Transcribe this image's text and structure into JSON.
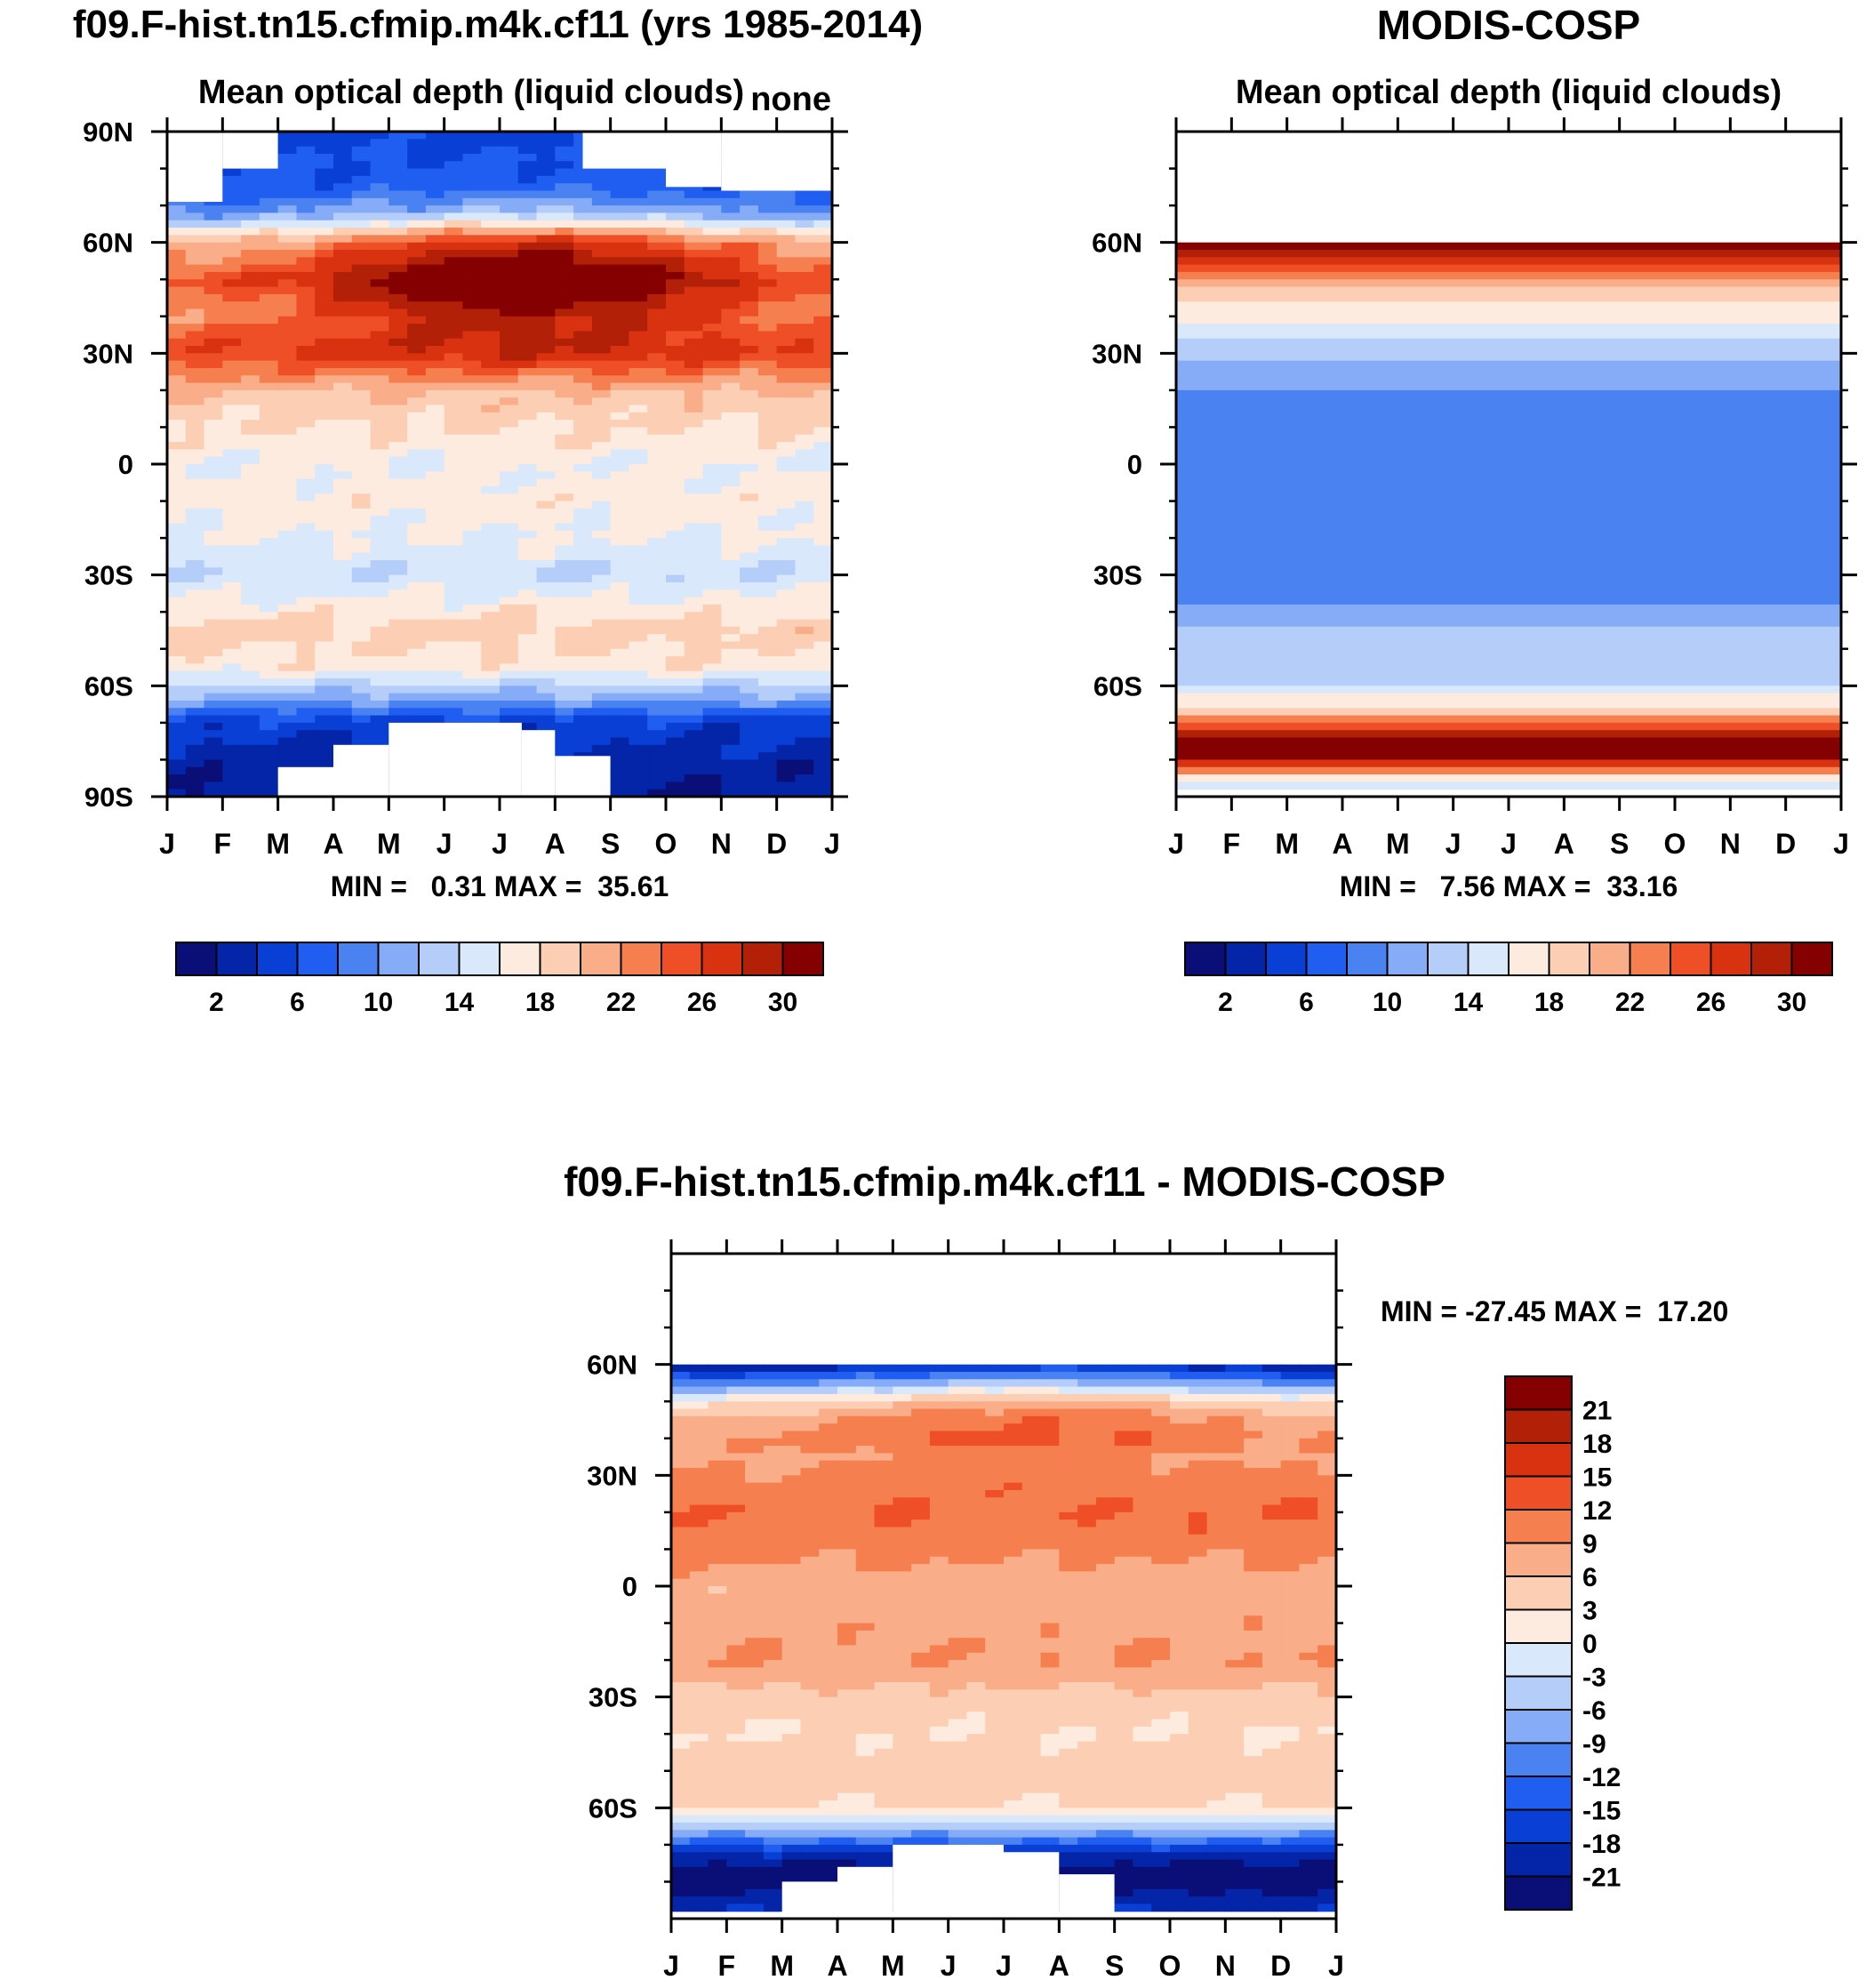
{
  "colors": {
    "abs": [
      "#0a0f78",
      "#0525a8",
      "#0a3fd6",
      "#1f5ef0",
      "#4a82f2",
      "#86acf7",
      "#b5cdf9",
      "#d9e8fb",
      "#fcebde",
      "#fccfb5",
      "#f9ad88",
      "#f67f50",
      "#ef4f26",
      "#d93210",
      "#b32008",
      "#850000"
    ],
    "diff": [
      "#0a0f78",
      "#0525a8",
      "#0a3fd6",
      "#1f5ef0",
      "#4a82f2",
      "#86acf7",
      "#b5cdf9",
      "#d9e8fb",
      "#fcebde",
      "#fccfb5",
      "#f9ad88",
      "#f67f50",
      "#ef4f26",
      "#d93210",
      "#b32008",
      "#850000"
    ]
  },
  "months": [
    "J",
    "F",
    "M",
    "A",
    "M",
    "J",
    "J",
    "A",
    "S",
    "O",
    "N",
    "D",
    "J"
  ],
  "chart_data": [
    {
      "type": "heatmap",
      "title": "f09.F-hist.tn15.cfmip.m4k.cf11 (yrs 1985-2014)",
      "subtitle": "Mean optical depth (liquid clouds)",
      "corner_label": "none",
      "ytick_labels": [
        "90N",
        "60N",
        "30N",
        "0",
        "30S",
        "60S",
        "90S"
      ],
      "ytick_values": [
        90,
        60,
        30,
        0,
        -30,
        -60,
        -90
      ],
      "ylim": [
        -90,
        90
      ],
      "minmax": "MIN =   0.31 MAX =  35.61",
      "min": 0.31,
      "max": 35.61,
      "colorbar_labels": [
        "2",
        "6",
        "10",
        "14",
        "18",
        "22",
        "26",
        "30"
      ],
      "levels": [
        2,
        4,
        6,
        8,
        10,
        12,
        14,
        16,
        18,
        20,
        22,
        24,
        26,
        28,
        30
      ],
      "lat_profile": [
        [
          90,
          5
        ],
        [
          75,
          7
        ],
        [
          68,
          11
        ],
        [
          60,
          24
        ],
        [
          50,
          30
        ],
        [
          40,
          26
        ],
        [
          30,
          27
        ],
        [
          20,
          20
        ],
        [
          10,
          18
        ],
        [
          0,
          16
        ],
        [
          -10,
          17
        ],
        [
          -20,
          16
        ],
        [
          -30,
          14
        ],
        [
          -45,
          19
        ],
        [
          -55,
          17
        ],
        [
          -62,
          12
        ],
        [
          -70,
          5
        ],
        [
          -80,
          3
        ],
        [
          -90,
          2
        ]
      ],
      "masked": "missing polar data near 90N and 90S"
    },
    {
      "type": "heatmap",
      "title": "MODIS-COSP",
      "subtitle": "Mean optical depth (liquid clouds)",
      "ytick_labels": [
        "60N",
        "30N",
        "0",
        "30S",
        "60S"
      ],
      "ytick_values": [
        60,
        30,
        0,
        -30,
        -60
      ],
      "ylim": [
        -90,
        90
      ],
      "data_lat_range": [
        -88,
        60
      ],
      "minmax": "MIN =   7.56 MAX =  33.16",
      "min": 7.56,
      "max": 33.16,
      "colorbar_labels": [
        "2",
        "6",
        "10",
        "14",
        "18",
        "22",
        "26",
        "30"
      ],
      "levels": [
        2,
        4,
        6,
        8,
        10,
        12,
        14,
        16,
        18,
        20,
        22,
        24,
        26,
        28,
        30
      ],
      "lat_profile": [
        [
          60,
          32
        ],
        [
          56,
          28
        ],
        [
          52,
          24
        ],
        [
          48,
          20
        ],
        [
          44,
          18
        ],
        [
          40,
          17
        ],
        [
          36,
          15
        ],
        [
          32,
          13
        ],
        [
          28,
          12
        ],
        [
          24,
          11
        ],
        [
          20,
          10
        ],
        [
          12,
          9
        ],
        [
          0,
          8
        ],
        [
          -10,
          9
        ],
        [
          -30,
          9
        ],
        [
          -33,
          8
        ],
        [
          -40,
          11
        ],
        [
          -50,
          13
        ],
        [
          -60,
          14
        ],
        [
          -66,
          18
        ],
        [
          -70,
          24
        ],
        [
          -74,
          30
        ],
        [
          -78,
          33
        ],
        [
          -82,
          26
        ],
        [
          -86,
          14
        ]
      ]
    },
    {
      "type": "heatmap",
      "title": "f09.F-hist.tn15.cfmip.m4k.cf11 - MODIS-COSP",
      "ytick_labels": [
        "60N",
        "30N",
        "0",
        "30S",
        "60S"
      ],
      "ytick_values": [
        60,
        30,
        0,
        -30,
        -60
      ],
      "ylim": [
        -90,
        90
      ],
      "data_lat_range": [
        -88,
        60
      ],
      "minmax": "MIN = -27.45 MAX =  17.20",
      "min": -27.45,
      "max": 17.2,
      "colorbar_labels": [
        "21",
        "18",
        "15",
        "12",
        "9",
        "6",
        "3",
        "0",
        "-3",
        "-6",
        "-9",
        "-12",
        "-15",
        "-18",
        "-21"
      ],
      "levels": [
        -21,
        -18,
        -15,
        -12,
        -9,
        -6,
        -3,
        0,
        3,
        6,
        9,
        12,
        15,
        18,
        21
      ],
      "lat_profile": [
        [
          60,
          -20
        ],
        [
          55,
          -8
        ],
        [
          50,
          5
        ],
        [
          45,
          9
        ],
        [
          40,
          11
        ],
        [
          35,
          9
        ],
        [
          30,
          10
        ],
        [
          20,
          12
        ],
        [
          10,
          10
        ],
        [
          0,
          7
        ],
        [
          -10,
          8
        ],
        [
          -20,
          9
        ],
        [
          -30,
          5
        ],
        [
          -40,
          3
        ],
        [
          -50,
          5
        ],
        [
          -60,
          3
        ],
        [
          -64,
          -3
        ],
        [
          -68,
          -10
        ],
        [
          -72,
          -18
        ],
        [
          -78,
          -24
        ],
        [
          -88,
          -18
        ]
      ]
    }
  ]
}
